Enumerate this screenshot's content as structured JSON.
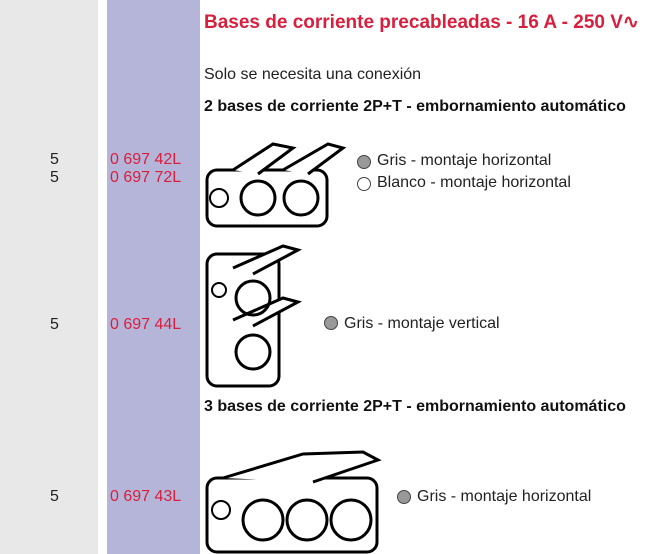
{
  "header": {
    "title": "Bases de corriente precableadas - 16 A - 250 V∿",
    "subtitle": "Solo se necesita una conexión"
  },
  "sections": [
    {
      "heading": "2 bases de corriente 2P+T - embornamiento automático",
      "items": [
        {
          "qty": "5",
          "ref": "0 697 42L",
          "desc": "Gris - montaje horizontal"
        },
        {
          "qty": "5",
          "ref": "0 697 72L",
          "desc": "Blanco - montaje horizontal"
        },
        {
          "qty": "5",
          "ref": "0 697 44L",
          "desc": "Gris - montaje vertical"
        }
      ]
    },
    {
      "heading": "3 bases de corriente 2P+T - embornamiento automático",
      "items": [
        {
          "qty": "5",
          "ref": "0 697 43L",
          "desc": "Gris - montaje horizontal"
        }
      ]
    }
  ]
}
